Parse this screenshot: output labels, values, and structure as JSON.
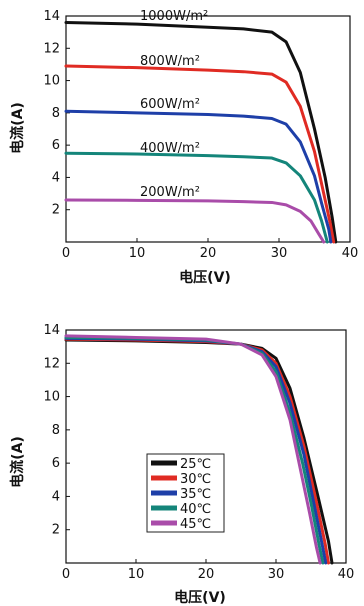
{
  "chart_data": [
    {
      "type": "line",
      "xlabel": "电压(V)",
      "ylabel": "电流(A)",
      "xlim": [
        0,
        40
      ],
      "ylim": [
        0,
        14
      ],
      "xticks": [
        "0",
        "10",
        "20",
        "30",
        "40"
      ],
      "yticks": [
        "2",
        "4",
        "6",
        "8",
        "10",
        "12",
        "14"
      ],
      "grid": false,
      "series": [
        {
          "name": "1000W/m²",
          "color": "#111111",
          "x": [
            0,
            10,
            20,
            25,
            29,
            31,
            33,
            35,
            36.5,
            37.5,
            38.0
          ],
          "y": [
            13.6,
            13.5,
            13.3,
            13.2,
            13.0,
            12.4,
            10.5,
            7.0,
            4.0,
            1.5,
            0
          ]
        },
        {
          "name": "800W/m²",
          "color": "#e02b23",
          "x": [
            0,
            10,
            20,
            25,
            29,
            31,
            33,
            35,
            36.2,
            37.2,
            37.7
          ],
          "y": [
            10.9,
            10.8,
            10.65,
            10.55,
            10.4,
            9.9,
            8.4,
            5.6,
            3.2,
            1.2,
            0
          ]
        },
        {
          "name": "600W/m²",
          "color": "#1e3fa8",
          "x": [
            0,
            10,
            20,
            25,
            29,
            31,
            33,
            35,
            36.0,
            37.0,
            37.3
          ],
          "y": [
            8.1,
            8.0,
            7.9,
            7.8,
            7.65,
            7.3,
            6.2,
            4.1,
            2.4,
            0.8,
            0
          ]
        },
        {
          "name": "400W/m²",
          "color": "#14857a",
          "x": [
            0,
            10,
            20,
            25,
            29,
            31,
            33,
            35,
            36.0,
            36.8
          ],
          "y": [
            5.5,
            5.45,
            5.35,
            5.28,
            5.2,
            4.9,
            4.1,
            2.6,
            1.3,
            0
          ]
        },
        {
          "name": "200W/m²",
          "color": "#a94ca9",
          "x": [
            0,
            10,
            20,
            25,
            29,
            31,
            33,
            34.5,
            35.6,
            36.3
          ],
          "y": [
            2.6,
            2.58,
            2.55,
            2.5,
            2.45,
            2.3,
            1.9,
            1.3,
            0.5,
            0
          ]
        }
      ],
      "annotations": [
        "1000W/m²",
        "800W/m²",
        "600W/m²",
        "400W/m²",
        "200W/m²"
      ]
    },
    {
      "type": "line",
      "xlabel": "电压(V)",
      "ylabel": "电流(A)",
      "xlim": [
        0,
        40
      ],
      "ylim": [
        0,
        14
      ],
      "xticks": [
        "0",
        "10",
        "20",
        "30",
        "40"
      ],
      "yticks": [
        "2",
        "4",
        "6",
        "8",
        "10",
        "12",
        "14"
      ],
      "grid": false,
      "legend": "center",
      "series": [
        {
          "name": "25℃",
          "color": "#111111",
          "x": [
            0,
            10,
            20,
            25,
            28,
            30,
            32,
            34,
            36,
            37.5,
            38.0
          ],
          "y": [
            13.4,
            13.35,
            13.25,
            13.15,
            12.9,
            12.3,
            10.5,
            7.5,
            4.0,
            1.3,
            0
          ]
        },
        {
          "name": "30℃",
          "color": "#e02b23",
          "x": [
            0,
            10,
            20,
            25,
            28,
            30,
            32,
            34,
            35.7,
            37.0,
            37.5
          ],
          "y": [
            13.45,
            13.4,
            13.3,
            13.15,
            12.8,
            12.0,
            10.0,
            7.0,
            3.8,
            1.2,
            0
          ]
        },
        {
          "name": "35℃",
          "color": "#1e3fa8",
          "x": [
            0,
            10,
            20,
            25,
            28,
            30,
            32,
            34,
            35.4,
            36.6,
            37.1
          ],
          "y": [
            13.5,
            13.45,
            13.35,
            13.15,
            12.7,
            11.8,
            9.6,
            6.5,
            3.6,
            1.1,
            0
          ]
        },
        {
          "name": "40℃",
          "color": "#14857a",
          "x": [
            0,
            10,
            20,
            25,
            28,
            30,
            32,
            33.8,
            35.1,
            36.2,
            36.7
          ],
          "y": [
            13.55,
            13.5,
            13.4,
            13.15,
            12.6,
            11.5,
            9.0,
            6.0,
            3.4,
            1.0,
            0
          ]
        },
        {
          "name": "45℃",
          "color": "#a94ca9",
          "x": [
            0,
            10,
            20,
            25,
            28,
            30,
            32,
            33.5,
            34.8,
            35.8,
            36.3
          ],
          "y": [
            13.65,
            13.55,
            13.45,
            13.15,
            12.5,
            11.2,
            8.6,
            5.6,
            3.0,
            0.9,
            0
          ]
        }
      ]
    }
  ]
}
